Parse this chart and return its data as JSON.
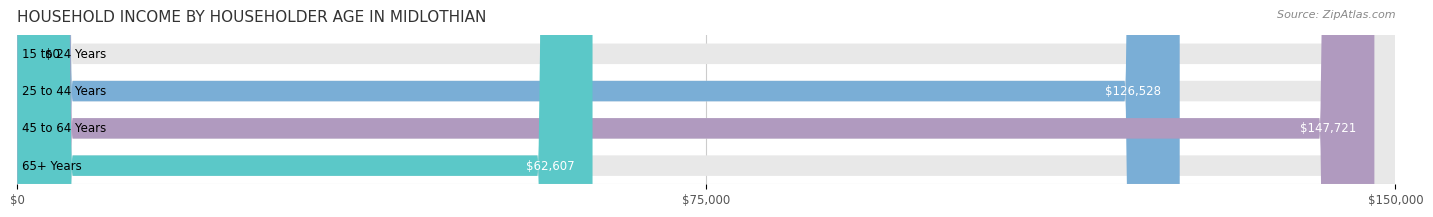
{
  "title": "HOUSEHOLD INCOME BY HOUSEHOLDER AGE IN MIDLOTHIAN",
  "source": "Source: ZipAtlas.com",
  "categories": [
    "15 to 24 Years",
    "25 to 44 Years",
    "45 to 64 Years",
    "65+ Years"
  ],
  "values": [
    0,
    126528,
    147721,
    62607
  ],
  "value_labels": [
    "$0",
    "$126,528",
    "$147,721",
    "$62,607"
  ],
  "bar_colors": [
    "#f08080",
    "#7aaed6",
    "#b09abf",
    "#5bc8c8"
  ],
  "bar_bg_color": "#f0f0f0",
  "x_max": 150000,
  "x_ticks": [
    0,
    75000,
    150000
  ],
  "x_tick_labels": [
    "$0",
    "$75,000",
    "$150,000"
  ],
  "title_fontsize": 11,
  "source_fontsize": 8,
  "label_fontsize": 8.5,
  "value_fontsize": 8.5,
  "background_color": "#ffffff",
  "bar_height": 0.55,
  "bar_bg_alpha": 0.5
}
